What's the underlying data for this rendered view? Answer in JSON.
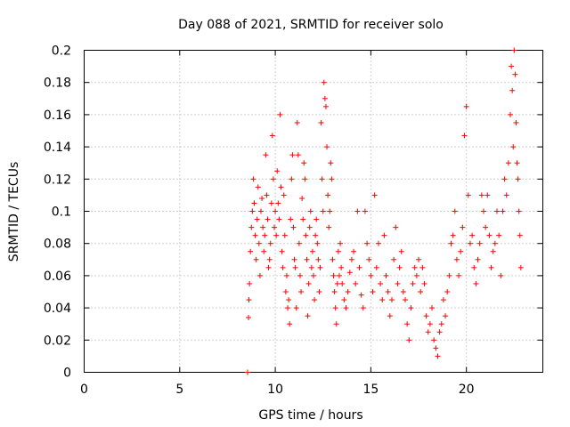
{
  "chart_data": {
    "type": "scatter",
    "title": "Day 088 of 2021, SRMTID for receiver solo",
    "xlabel": "GPS time / hours",
    "ylabel": "SRMTID / TECUs",
    "xlim": [
      0,
      24
    ],
    "ylim": [
      0,
      0.2
    ],
    "x_ticks": [
      0,
      5,
      10,
      15,
      20
    ],
    "x_tick_labels": [
      "0",
      "5",
      "10",
      "15",
      "20"
    ],
    "y_ticks": [
      0,
      0.02,
      0.04,
      0.06,
      0.08,
      0.1,
      0.12,
      0.14,
      0.16,
      0.18,
      0.2
    ],
    "y_tick_labels": [
      "0",
      "0.02",
      "0.04",
      "0.06",
      "0.08",
      "0.1",
      "0.12",
      "0.14",
      "0.16",
      "0.18",
      "0.2"
    ],
    "grid": true,
    "marker": "+",
    "color": "#ff0000",
    "series": [
      {
        "name": "SRMTID",
        "points": [
          [
            8.55,
            0.0
          ],
          [
            8.6,
            0.034
          ],
          [
            8.62,
            0.045
          ],
          [
            8.65,
            0.055
          ],
          [
            8.7,
            0.075
          ],
          [
            8.75,
            0.09
          ],
          [
            8.8,
            0.1
          ],
          [
            8.85,
            0.12
          ],
          [
            8.9,
            0.105
          ],
          [
            8.95,
            0.085
          ],
          [
            9.0,
            0.07
          ],
          [
            9.05,
            0.095
          ],
          [
            9.1,
            0.115
          ],
          [
            9.15,
            0.08
          ],
          [
            9.2,
            0.06
          ],
          [
            9.25,
            0.1
          ],
          [
            9.3,
            0.108
          ],
          [
            9.35,
            0.09
          ],
          [
            9.4,
            0.075
          ],
          [
            9.45,
            0.085
          ],
          [
            9.5,
            0.135
          ],
          [
            9.55,
            0.11
          ],
          [
            9.6,
            0.095
          ],
          [
            9.65,
            0.065
          ],
          [
            9.7,
            0.07
          ],
          [
            9.75,
            0.08
          ],
          [
            9.8,
            0.105
          ],
          [
            9.85,
            0.147
          ],
          [
            9.9,
            0.12
          ],
          [
            9.95,
            0.09
          ],
          [
            10.0,
            0.1
          ],
          [
            10.05,
            0.085
          ],
          [
            10.1,
            0.125
          ],
          [
            10.15,
            0.105
          ],
          [
            10.2,
            0.095
          ],
          [
            10.25,
            0.16
          ],
          [
            10.3,
            0.115
          ],
          [
            10.35,
            0.075
          ],
          [
            10.4,
            0.065
          ],
          [
            10.45,
            0.11
          ],
          [
            10.5,
            0.085
          ],
          [
            10.55,
            0.05
          ],
          [
            10.6,
            0.06
          ],
          [
            10.65,
            0.04
          ],
          [
            10.7,
            0.045
          ],
          [
            10.75,
            0.03
          ],
          [
            10.8,
            0.095
          ],
          [
            10.85,
            0.12
          ],
          [
            10.9,
            0.135
          ],
          [
            10.95,
            0.09
          ],
          [
            11.0,
            0.07
          ],
          [
            11.05,
            0.065
          ],
          [
            11.1,
            0.04
          ],
          [
            11.15,
            0.155
          ],
          [
            11.2,
            0.135
          ],
          [
            11.25,
            0.08
          ],
          [
            11.3,
            0.06
          ],
          [
            11.35,
            0.05
          ],
          [
            11.4,
            0.108
          ],
          [
            11.45,
            0.095
          ],
          [
            11.5,
            0.13
          ],
          [
            11.55,
            0.12
          ],
          [
            11.6,
            0.085
          ],
          [
            11.65,
            0.07
          ],
          [
            11.7,
            0.035
          ],
          [
            11.75,
            0.055
          ],
          [
            11.8,
            0.09
          ],
          [
            11.85,
            0.1
          ],
          [
            11.9,
            0.065
          ],
          [
            11.95,
            0.075
          ],
          [
            12.0,
            0.06
          ],
          [
            12.05,
            0.045
          ],
          [
            12.1,
            0.085
          ],
          [
            12.15,
            0.095
          ],
          [
            12.2,
            0.08
          ],
          [
            12.25,
            0.07
          ],
          [
            12.3,
            0.05
          ],
          [
            12.35,
            0.065
          ],
          [
            12.4,
            0.155
          ],
          [
            12.45,
            0.12
          ],
          [
            12.5,
            0.1
          ],
          [
            12.55,
            0.18
          ],
          [
            12.6,
            0.17
          ],
          [
            12.65,
            0.165
          ],
          [
            12.7,
            0.14
          ],
          [
            12.75,
            0.11
          ],
          [
            12.8,
            0.09
          ],
          [
            12.85,
            0.1
          ],
          [
            12.9,
            0.13
          ],
          [
            12.95,
            0.12
          ],
          [
            13.0,
            0.07
          ],
          [
            13.05,
            0.06
          ],
          [
            13.1,
            0.05
          ],
          [
            13.15,
            0.04
          ],
          [
            13.2,
            0.03
          ],
          [
            13.25,
            0.055
          ],
          [
            13.3,
            0.075
          ],
          [
            13.35,
            0.06
          ],
          [
            13.4,
            0.08
          ],
          [
            13.45,
            0.065
          ],
          [
            13.5,
            0.055
          ],
          [
            13.6,
            0.045
          ],
          [
            13.7,
            0.04
          ],
          [
            13.8,
            0.05
          ],
          [
            13.9,
            0.062
          ],
          [
            14.0,
            0.07
          ],
          [
            14.1,
            0.075
          ],
          [
            14.2,
            0.055
          ],
          [
            14.3,
            0.1
          ],
          [
            14.4,
            0.065
          ],
          [
            14.5,
            0.048
          ],
          [
            14.6,
            0.04
          ],
          [
            14.7,
            0.1
          ],
          [
            14.8,
            0.08
          ],
          [
            14.9,
            0.07
          ],
          [
            15.0,
            0.06
          ],
          [
            15.1,
            0.05
          ],
          [
            15.2,
            0.11
          ],
          [
            15.3,
            0.065
          ],
          [
            15.4,
            0.08
          ],
          [
            15.5,
            0.055
          ],
          [
            15.6,
            0.045
          ],
          [
            15.7,
            0.085
          ],
          [
            15.8,
            0.06
          ],
          [
            15.9,
            0.05
          ],
          [
            16.0,
            0.035
          ],
          [
            16.1,
            0.045
          ],
          [
            16.2,
            0.07
          ],
          [
            16.3,
            0.09
          ],
          [
            16.4,
            0.055
          ],
          [
            16.5,
            0.065
          ],
          [
            16.6,
            0.075
          ],
          [
            16.7,
            0.05
          ],
          [
            16.8,
            0.045
          ],
          [
            16.9,
            0.03
          ],
          [
            17.0,
            0.02
          ],
          [
            17.1,
            0.04
          ],
          [
            17.2,
            0.055
          ],
          [
            17.3,
            0.065
          ],
          [
            17.4,
            0.06
          ],
          [
            17.5,
            0.07
          ],
          [
            17.6,
            0.05
          ],
          [
            17.7,
            0.065
          ],
          [
            17.8,
            0.055
          ],
          [
            17.9,
            0.035
          ],
          [
            18.0,
            0.025
          ],
          [
            18.1,
            0.03
          ],
          [
            18.2,
            0.04
          ],
          [
            18.3,
            0.02
          ],
          [
            18.4,
            0.015
          ],
          [
            18.5,
            0.01
          ],
          [
            18.6,
            0.025
          ],
          [
            18.7,
            0.03
          ],
          [
            18.8,
            0.045
          ],
          [
            18.9,
            0.035
          ],
          [
            19.0,
            0.05
          ],
          [
            19.1,
            0.06
          ],
          [
            19.2,
            0.08
          ],
          [
            19.3,
            0.085
          ],
          [
            19.4,
            0.1
          ],
          [
            19.5,
            0.07
          ],
          [
            19.6,
            0.06
          ],
          [
            19.7,
            0.075
          ],
          [
            19.8,
            0.09
          ],
          [
            19.9,
            0.147
          ],
          [
            20.0,
            0.165
          ],
          [
            20.1,
            0.11
          ],
          [
            20.2,
            0.08
          ],
          [
            20.3,
            0.085
          ],
          [
            20.4,
            0.065
          ],
          [
            20.5,
            0.055
          ],
          [
            20.6,
            0.07
          ],
          [
            20.7,
            0.08
          ],
          [
            20.8,
            0.11
          ],
          [
            20.9,
            0.1
          ],
          [
            21.0,
            0.09
          ],
          [
            21.1,
            0.11
          ],
          [
            21.2,
            0.085
          ],
          [
            21.3,
            0.065
          ],
          [
            21.4,
            0.075
          ],
          [
            21.5,
            0.08
          ],
          [
            21.6,
            0.1
          ],
          [
            21.7,
            0.085
          ],
          [
            21.8,
            0.06
          ],
          [
            21.9,
            0.1
          ],
          [
            22.0,
            0.12
          ],
          [
            22.1,
            0.11
          ],
          [
            22.2,
            0.13
          ],
          [
            22.3,
            0.16
          ],
          [
            22.35,
            0.19
          ],
          [
            22.4,
            0.175
          ],
          [
            22.45,
            0.14
          ],
          [
            22.5,
            0.2
          ],
          [
            22.55,
            0.185
          ],
          [
            22.6,
            0.155
          ],
          [
            22.65,
            0.13
          ],
          [
            22.7,
            0.12
          ],
          [
            22.75,
            0.1
          ],
          [
            22.8,
            0.085
          ],
          [
            22.85,
            0.065
          ]
        ]
      }
    ]
  }
}
